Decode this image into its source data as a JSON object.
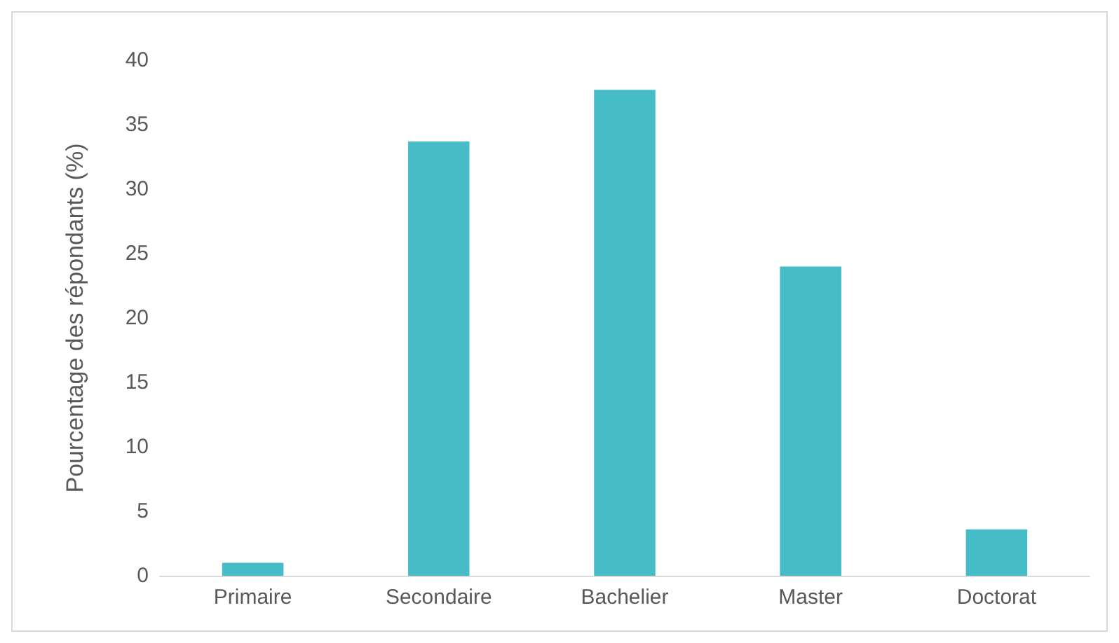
{
  "chart_data": {
    "type": "bar",
    "ylabel": "Pourcentage des répondants (%)",
    "categories": [
      "Primaire",
      "Secondaire",
      "Bachelier",
      "Master",
      "Doctorat"
    ],
    "values": [
      1.0,
      33.7,
      37.7,
      24.0,
      3.6
    ],
    "color": "#45bcc6",
    "ylim": [
      0,
      40
    ],
    "yticks": [
      0,
      5,
      10,
      15,
      20,
      25,
      30,
      35,
      40
    ],
    "grid": false
  }
}
